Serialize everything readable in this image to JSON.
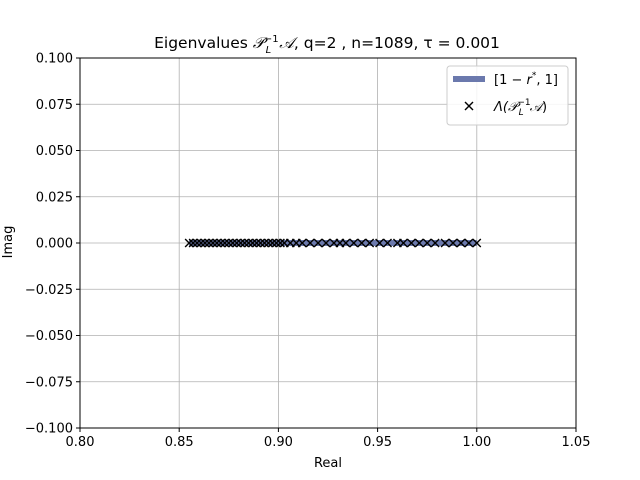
{
  "chart_data": {
    "type": "scatter",
    "title": "Eigenvalues 𝒫ₗ⁻¹𝒜, q=2 , n=1089, τ = 0.001",
    "title_parts": {
      "prefix": "Eigenvalues ",
      "sym_P": "𝒫",
      "sub": "L",
      "sup": "−1",
      "sym_A": "𝒜",
      "suffix": ", q=2 , n=1089, τ = 0.001"
    },
    "xlabel": "Real",
    "ylabel": "Imag",
    "xlim": [
      0.8,
      1.05
    ],
    "ylim": [
      -0.1,
      0.1
    ],
    "xticks": [
      0.8,
      0.85,
      0.9,
      0.95,
      1.0,
      1.05
    ],
    "xtick_labels": [
      "0.80",
      "0.85",
      "0.90",
      "0.95",
      "1.00",
      "1.05"
    ],
    "yticks": [
      -0.1,
      -0.075,
      -0.05,
      -0.025,
      0.0,
      0.025,
      0.05,
      0.075,
      0.1
    ],
    "ytick_labels": [
      "−0.100",
      "−0.075",
      "−0.050",
      "−0.025",
      "0.000",
      "0.025",
      "0.050",
      "0.075",
      "0.100"
    ],
    "grid": true,
    "legend_position": "top-right",
    "interval": {
      "name": "[1 − r*, 1]",
      "name_parts": {
        "left": "[1 − ",
        "r": "r",
        "star": "*",
        "right": ", 1]"
      },
      "x_start": 0.855,
      "x_end": 1.0,
      "y": 0.0,
      "color": "#6b79ad"
    },
    "eigenvalues": {
      "name": "Λ(𝒫ₗ⁻¹𝒜)",
      "name_parts": {
        "lambda": "Λ(",
        "sym_P": "𝒫",
        "sub": "L",
        "sup": "−1",
        "sym_A": "𝒜",
        "close": ")"
      },
      "marker": "x",
      "color": "#000000",
      "x": [
        0.855,
        0.857,
        0.859,
        0.861,
        0.863,
        0.865,
        0.867,
        0.869,
        0.871,
        0.873,
        0.875,
        0.877,
        0.879,
        0.881,
        0.883,
        0.885,
        0.887,
        0.889,
        0.891,
        0.893,
        0.895,
        0.897,
        0.899,
        0.901,
        0.903,
        0.906,
        0.909,
        0.912,
        0.916,
        0.92,
        0.924,
        0.928,
        0.931,
        0.934,
        0.938,
        0.942,
        0.946,
        0.951,
        0.955,
        0.96,
        0.963,
        0.967,
        0.971,
        0.975,
        0.979,
        0.984,
        0.988,
        0.992,
        0.996,
        1.0
      ],
      "y": [
        0,
        0,
        0,
        0,
        0,
        0,
        0,
        0,
        0,
        0,
        0,
        0,
        0,
        0,
        0,
        0,
        0,
        0,
        0,
        0,
        0,
        0,
        0,
        0,
        0,
        0,
        0,
        0,
        0,
        0,
        0,
        0,
        0,
        0,
        0,
        0,
        0,
        0,
        0,
        0,
        0,
        0,
        0,
        0,
        0,
        0,
        0,
        0,
        0,
        0
      ]
    }
  }
}
